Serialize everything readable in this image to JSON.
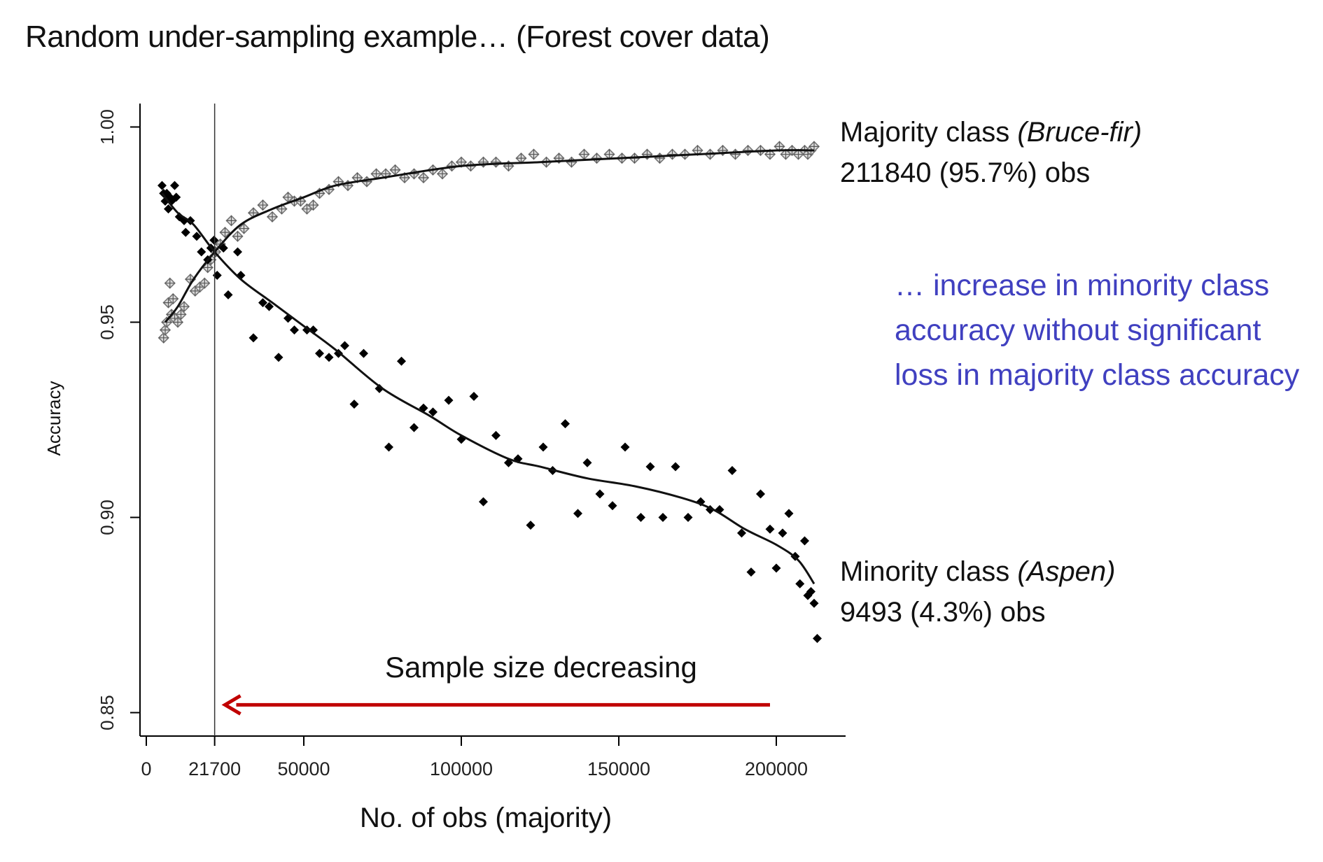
{
  "slide_title": "Random under-sampling example… (Forest cover data)",
  "colors": {
    "minority_points": "#000000",
    "majority_points": "#777777",
    "arrow": "#c00000",
    "note": "#4040c0",
    "axis": "#000000"
  },
  "annotations": {
    "majority": {
      "line1": "Majority class ",
      "name": "(Bruce-fir)",
      "line2": "211840 (95.7%) obs"
    },
    "minority": {
      "line1": "Minority class ",
      "name": "(Aspen)",
      "line2": "9493 (4.3%) obs"
    },
    "note": [
      "… increase in minority class",
      "accuracy without significant",
      "loss in majority class accuracy"
    ],
    "arrow_label": "Sample size decreasing"
  },
  "chart_data": {
    "type": "scatter",
    "xlabel": "No. of obs (majority)",
    "ylabel": "Accuracy",
    "xlim": [
      -2000,
      222000
    ],
    "ylim": [
      0.844,
      1.006
    ],
    "xticks": [
      0,
      21700,
      50000,
      100000,
      150000,
      200000
    ],
    "xtick_labels": [
      "0",
      "21700",
      "50000",
      "100000",
      "150000",
      "200000"
    ],
    "yticks": [
      0.85,
      0.9,
      0.95,
      1.0
    ],
    "ytick_labels": [
      "0.85",
      "0.90",
      "0.95",
      "1.00"
    ],
    "vline_x": 21700,
    "arrow": {
      "from_x": 198000,
      "to_x": 25000,
      "y": 0.852
    },
    "series": [
      {
        "name": "Majority class (Bruce-fir)",
        "marker": "crossed-diamond",
        "points": [
          [
            5500,
            0.946
          ],
          [
            6000,
            0.948
          ],
          [
            6500,
            0.95
          ],
          [
            7000,
            0.955
          ],
          [
            7500,
            0.96
          ],
          [
            8000,
            0.952
          ],
          [
            8500,
            0.956
          ],
          [
            9000,
            0.951
          ],
          [
            10000,
            0.95
          ],
          [
            11000,
            0.952
          ],
          [
            12000,
            0.954
          ],
          [
            14000,
            0.961
          ],
          [
            15500,
            0.958
          ],
          [
            17000,
            0.959
          ],
          [
            18500,
            0.96
          ],
          [
            19500,
            0.964
          ],
          [
            20500,
            0.966
          ],
          [
            22000,
            0.968
          ],
          [
            23500,
            0.97
          ],
          [
            25000,
            0.973
          ],
          [
            27000,
            0.976
          ],
          [
            29000,
            0.972
          ],
          [
            31000,
            0.974
          ],
          [
            34000,
            0.978
          ],
          [
            37000,
            0.98
          ],
          [
            40000,
            0.977
          ],
          [
            43000,
            0.979
          ],
          [
            45000,
            0.982
          ],
          [
            47000,
            0.981
          ],
          [
            49000,
            0.981
          ],
          [
            51000,
            0.979
          ],
          [
            53000,
            0.98
          ],
          [
            55000,
            0.983
          ],
          [
            58000,
            0.984
          ],
          [
            61000,
            0.986
          ],
          [
            64000,
            0.985
          ],
          [
            67000,
            0.987
          ],
          [
            70000,
            0.986
          ],
          [
            73000,
            0.988
          ],
          [
            76000,
            0.988
          ],
          [
            79000,
            0.989
          ],
          [
            82000,
            0.987
          ],
          [
            85000,
            0.988
          ],
          [
            88000,
            0.987
          ],
          [
            91000,
            0.989
          ],
          [
            94000,
            0.988
          ],
          [
            97000,
            0.99
          ],
          [
            100000,
            0.991
          ],
          [
            103000,
            0.99
          ],
          [
            107000,
            0.991
          ],
          [
            111000,
            0.991
          ],
          [
            115000,
            0.99
          ],
          [
            119000,
            0.992
          ],
          [
            123000,
            0.993
          ],
          [
            127000,
            0.991
          ],
          [
            131000,
            0.992
          ],
          [
            135000,
            0.991
          ],
          [
            139000,
            0.993
          ],
          [
            143000,
            0.992
          ],
          [
            147000,
            0.993
          ],
          [
            151000,
            0.992
          ],
          [
            155000,
            0.992
          ],
          [
            159000,
            0.993
          ],
          [
            163000,
            0.992
          ],
          [
            167000,
            0.993
          ],
          [
            171000,
            0.993
          ],
          [
            175000,
            0.994
          ],
          [
            179000,
            0.993
          ],
          [
            183000,
            0.994
          ],
          [
            187000,
            0.993
          ],
          [
            191000,
            0.994
          ],
          [
            195000,
            0.994
          ],
          [
            198000,
            0.993
          ],
          [
            201000,
            0.995
          ],
          [
            203000,
            0.993
          ],
          [
            205000,
            0.994
          ],
          [
            207000,
            0.993
          ],
          [
            209000,
            0.994
          ],
          [
            210000,
            0.993
          ],
          [
            211000,
            0.994
          ],
          [
            212000,
            0.995
          ]
        ],
        "trend": [
          [
            6000,
            0.95
          ],
          [
            10000,
            0.954
          ],
          [
            15000,
            0.961
          ],
          [
            21700,
            0.968
          ],
          [
            30000,
            0.975
          ],
          [
            40000,
            0.979
          ],
          [
            50000,
            0.982
          ],
          [
            60000,
            0.985
          ],
          [
            75000,
            0.987
          ],
          [
            100000,
            0.99
          ],
          [
            125000,
            0.991
          ],
          [
            150000,
            0.992
          ],
          [
            175000,
            0.993
          ],
          [
            200000,
            0.994
          ],
          [
            212000,
            0.994
          ]
        ]
      },
      {
        "name": "Minority class (Aspen)",
        "marker": "diamond",
        "points": [
          [
            5000,
            0.985
          ],
          [
            5500,
            0.983
          ],
          [
            6000,
            0.981
          ],
          [
            6500,
            0.983
          ],
          [
            7000,
            0.979
          ],
          [
            7500,
            0.982
          ],
          [
            8000,
            0.981
          ],
          [
            9000,
            0.985
          ],
          [
            9500,
            0.982
          ],
          [
            10500,
            0.977
          ],
          [
            12000,
            0.976
          ],
          [
            12500,
            0.973
          ],
          [
            14000,
            0.976
          ],
          [
            16000,
            0.972
          ],
          [
            17500,
            0.968
          ],
          [
            19500,
            0.966
          ],
          [
            20500,
            0.969
          ],
          [
            21500,
            0.971
          ],
          [
            22500,
            0.962
          ],
          [
            24500,
            0.969
          ],
          [
            26000,
            0.957
          ],
          [
            29000,
            0.968
          ],
          [
            30000,
            0.962
          ],
          [
            34000,
            0.946
          ],
          [
            37000,
            0.955
          ],
          [
            39000,
            0.954
          ],
          [
            42000,
            0.941
          ],
          [
            45000,
            0.951
          ],
          [
            47000,
            0.948
          ],
          [
            51000,
            0.948
          ],
          [
            53000,
            0.948
          ],
          [
            55000,
            0.942
          ],
          [
            58000,
            0.941
          ],
          [
            61000,
            0.942
          ],
          [
            63000,
            0.944
          ],
          [
            66000,
            0.929
          ],
          [
            69000,
            0.942
          ],
          [
            74000,
            0.933
          ],
          [
            77000,
            0.918
          ],
          [
            81000,
            0.94
          ],
          [
            85000,
            0.923
          ],
          [
            88000,
            0.928
          ],
          [
            91000,
            0.927
          ],
          [
            96000,
            0.93
          ],
          [
            100000,
            0.92
          ],
          [
            104000,
            0.931
          ],
          [
            107000,
            0.904
          ],
          [
            111000,
            0.921
          ],
          [
            115000,
            0.914
          ],
          [
            118000,
            0.915
          ],
          [
            122000,
            0.898
          ],
          [
            126000,
            0.918
          ],
          [
            129000,
            0.912
          ],
          [
            133000,
            0.924
          ],
          [
            137000,
            0.901
          ],
          [
            140000,
            0.914
          ],
          [
            144000,
            0.906
          ],
          [
            148000,
            0.903
          ],
          [
            152000,
            0.918
          ],
          [
            157000,
            0.9
          ],
          [
            160000,
            0.913
          ],
          [
            164000,
            0.9
          ],
          [
            168000,
            0.913
          ],
          [
            172000,
            0.9
          ],
          [
            176000,
            0.904
          ],
          [
            179000,
            0.902
          ],
          [
            182000,
            0.902
          ],
          [
            186000,
            0.912
          ],
          [
            189000,
            0.896
          ],
          [
            192000,
            0.886
          ],
          [
            195000,
            0.906
          ],
          [
            198000,
            0.897
          ],
          [
            200000,
            0.887
          ],
          [
            202000,
            0.896
          ],
          [
            204000,
            0.901
          ],
          [
            206000,
            0.89
          ],
          [
            207500,
            0.883
          ],
          [
            209000,
            0.894
          ],
          [
            210000,
            0.88
          ],
          [
            211000,
            0.881
          ],
          [
            212000,
            0.878
          ],
          [
            213000,
            0.869
          ]
        ],
        "trend": [
          [
            5000,
            0.983
          ],
          [
            10000,
            0.978
          ],
          [
            15000,
            0.975
          ],
          [
            21700,
            0.968
          ],
          [
            30000,
            0.961
          ],
          [
            40000,
            0.955
          ],
          [
            50000,
            0.949
          ],
          [
            60000,
            0.943
          ],
          [
            75000,
            0.933
          ],
          [
            90000,
            0.926
          ],
          [
            100000,
            0.921
          ],
          [
            115000,
            0.915
          ],
          [
            125000,
            0.913
          ],
          [
            140000,
            0.91
          ],
          [
            155000,
            0.908
          ],
          [
            170000,
            0.905
          ],
          [
            180000,
            0.902
          ],
          [
            190000,
            0.897
          ],
          [
            200000,
            0.893
          ],
          [
            207000,
            0.889
          ],
          [
            212000,
            0.883
          ]
        ]
      }
    ]
  }
}
